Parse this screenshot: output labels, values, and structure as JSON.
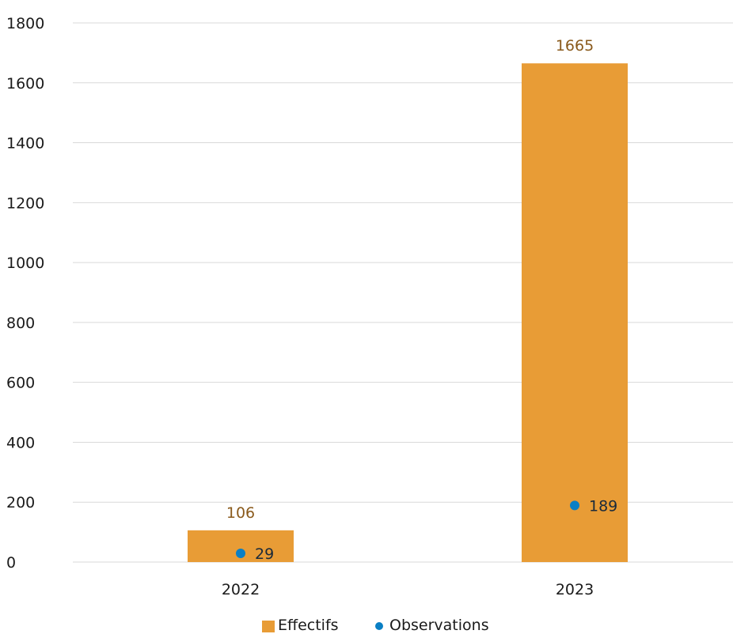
{
  "chart_data": {
    "type": "bar",
    "title": "",
    "xlabel": "",
    "ylabel": "",
    "categories": [
      "2022",
      "2023"
    ],
    "ylim": [
      0,
      1800
    ],
    "yticks": [
      0,
      200,
      400,
      600,
      800,
      1000,
      1200,
      1400,
      1600,
      1800
    ],
    "grid": true,
    "legend_position": "bottom",
    "series": [
      {
        "name": "Effectifs",
        "kind": "bar",
        "color": "#E89C36",
        "label_color": "#8A5A1C",
        "values": [
          106,
          1665
        ]
      },
      {
        "name": "Observations",
        "kind": "point",
        "color": "#0A7FC4",
        "values": [
          29,
          189
        ]
      }
    ]
  }
}
